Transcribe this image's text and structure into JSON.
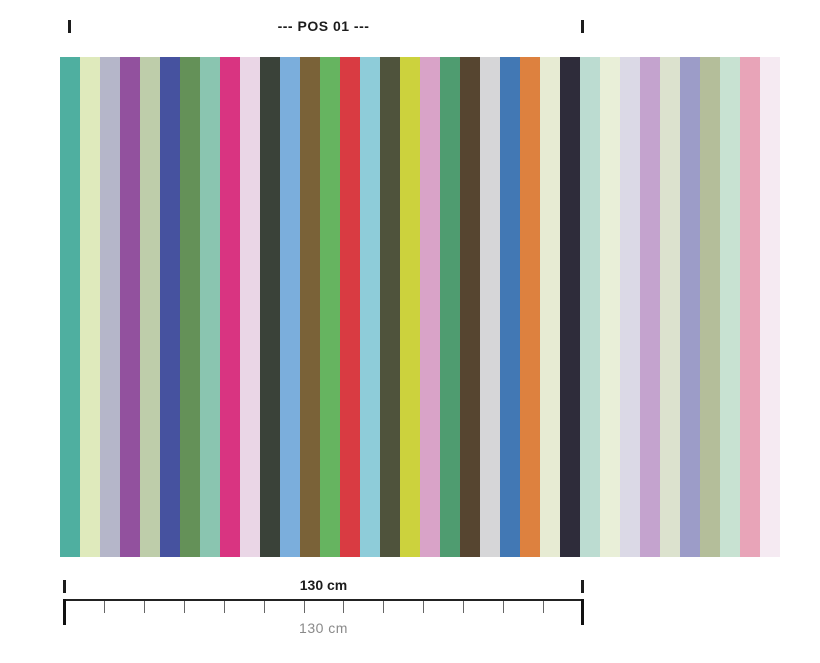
{
  "header": {
    "title": "--- POS 01 ---",
    "left_tick": "I",
    "right_tick": "I"
  },
  "stripes": {
    "count": 36,
    "colors": [
      "#4FAFA0",
      "#DFEABC",
      "#B5B6C9",
      "#92519E",
      "#BECDAA",
      "#46529F",
      "#649158",
      "#8AC5B0",
      "#D93481",
      "#EAD6E6",
      "#3A4239",
      "#7BAEDC",
      "#7A6238",
      "#66B460",
      "#D93B42",
      "#8ECCD9",
      "#4F533C",
      "#CCD23D",
      "#D9A3C8",
      "#4F9C70",
      "#564530",
      "#D6D6D8",
      "#4278B4",
      "#DD813F",
      "#E7EBD3",
      "#2E2C3A",
      "#BCDCD1",
      "#E9EFD8",
      "#DBD9E6",
      "#C4A3CE",
      "#DCE2CE",
      "#9C9CC8",
      "#B4BE9A",
      "#C8E2D2",
      "#E8A4B8",
      "#F5EAF2"
    ]
  },
  "ruler": {
    "width_label": "130 cm",
    "caption": "130 cm",
    "intervals": 13,
    "line_color": "#222222",
    "tick_color": "#666666"
  }
}
